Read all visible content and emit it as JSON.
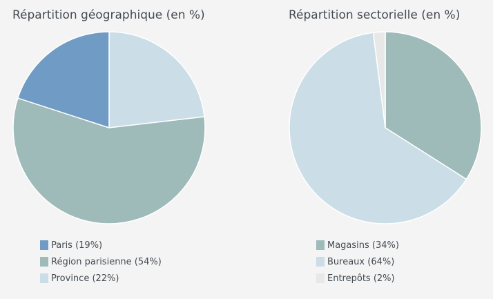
{
  "colors": {
    "background": "#f4f4f4",
    "text": "#444b52",
    "paris": "#6f9bc4",
    "region_parisienne": "#9ebab9",
    "province": "#cbdde6",
    "magasins": "#9ebab9",
    "bureaux": "#cbdde6",
    "entrepots": "#e8e8e8"
  },
  "chart_data": [
    {
      "type": "pie",
      "title": "Répartition géographique (en %)",
      "start_angle_deg": 0,
      "direction": "clockwise",
      "slices": [
        {
          "label": "Province (22%)",
          "value": 22,
          "color": "#cbdde6"
        },
        {
          "label": "Région parisienne (54%)",
          "value": 54,
          "color": "#9ebab9"
        },
        {
          "label": "Paris (19%)",
          "value": 19,
          "color": "#6f9bc4"
        }
      ],
      "legend": [
        {
          "label": "Paris (19%)",
          "color": "#6f9bc4"
        },
        {
          "label": "Région parisienne (54%)",
          "color": "#9ebab9"
        },
        {
          "label": "Province (22%)",
          "color": "#cbdde6"
        }
      ],
      "legend_position": "bottom"
    },
    {
      "type": "pie",
      "title": "Répartition sectorielle (en %)",
      "start_angle_deg": 0,
      "direction": "clockwise",
      "slices": [
        {
          "label": "Magasins (34%)",
          "value": 34,
          "color": "#9ebab9"
        },
        {
          "label": "Bureaux (64%)",
          "value": 64,
          "color": "#cbdde6"
        },
        {
          "label": "Entrepôts (2%)",
          "value": 2,
          "color": "#e8e8e8"
        }
      ],
      "legend": [
        {
          "label": "Magasins (34%)",
          "color": "#9ebab9"
        },
        {
          "label": "Bureaux (64%)",
          "color": "#cbdde6"
        },
        {
          "label": "Entrepôts (2%)",
          "color": "#e8e8e8"
        }
      ],
      "legend_position": "bottom"
    }
  ]
}
